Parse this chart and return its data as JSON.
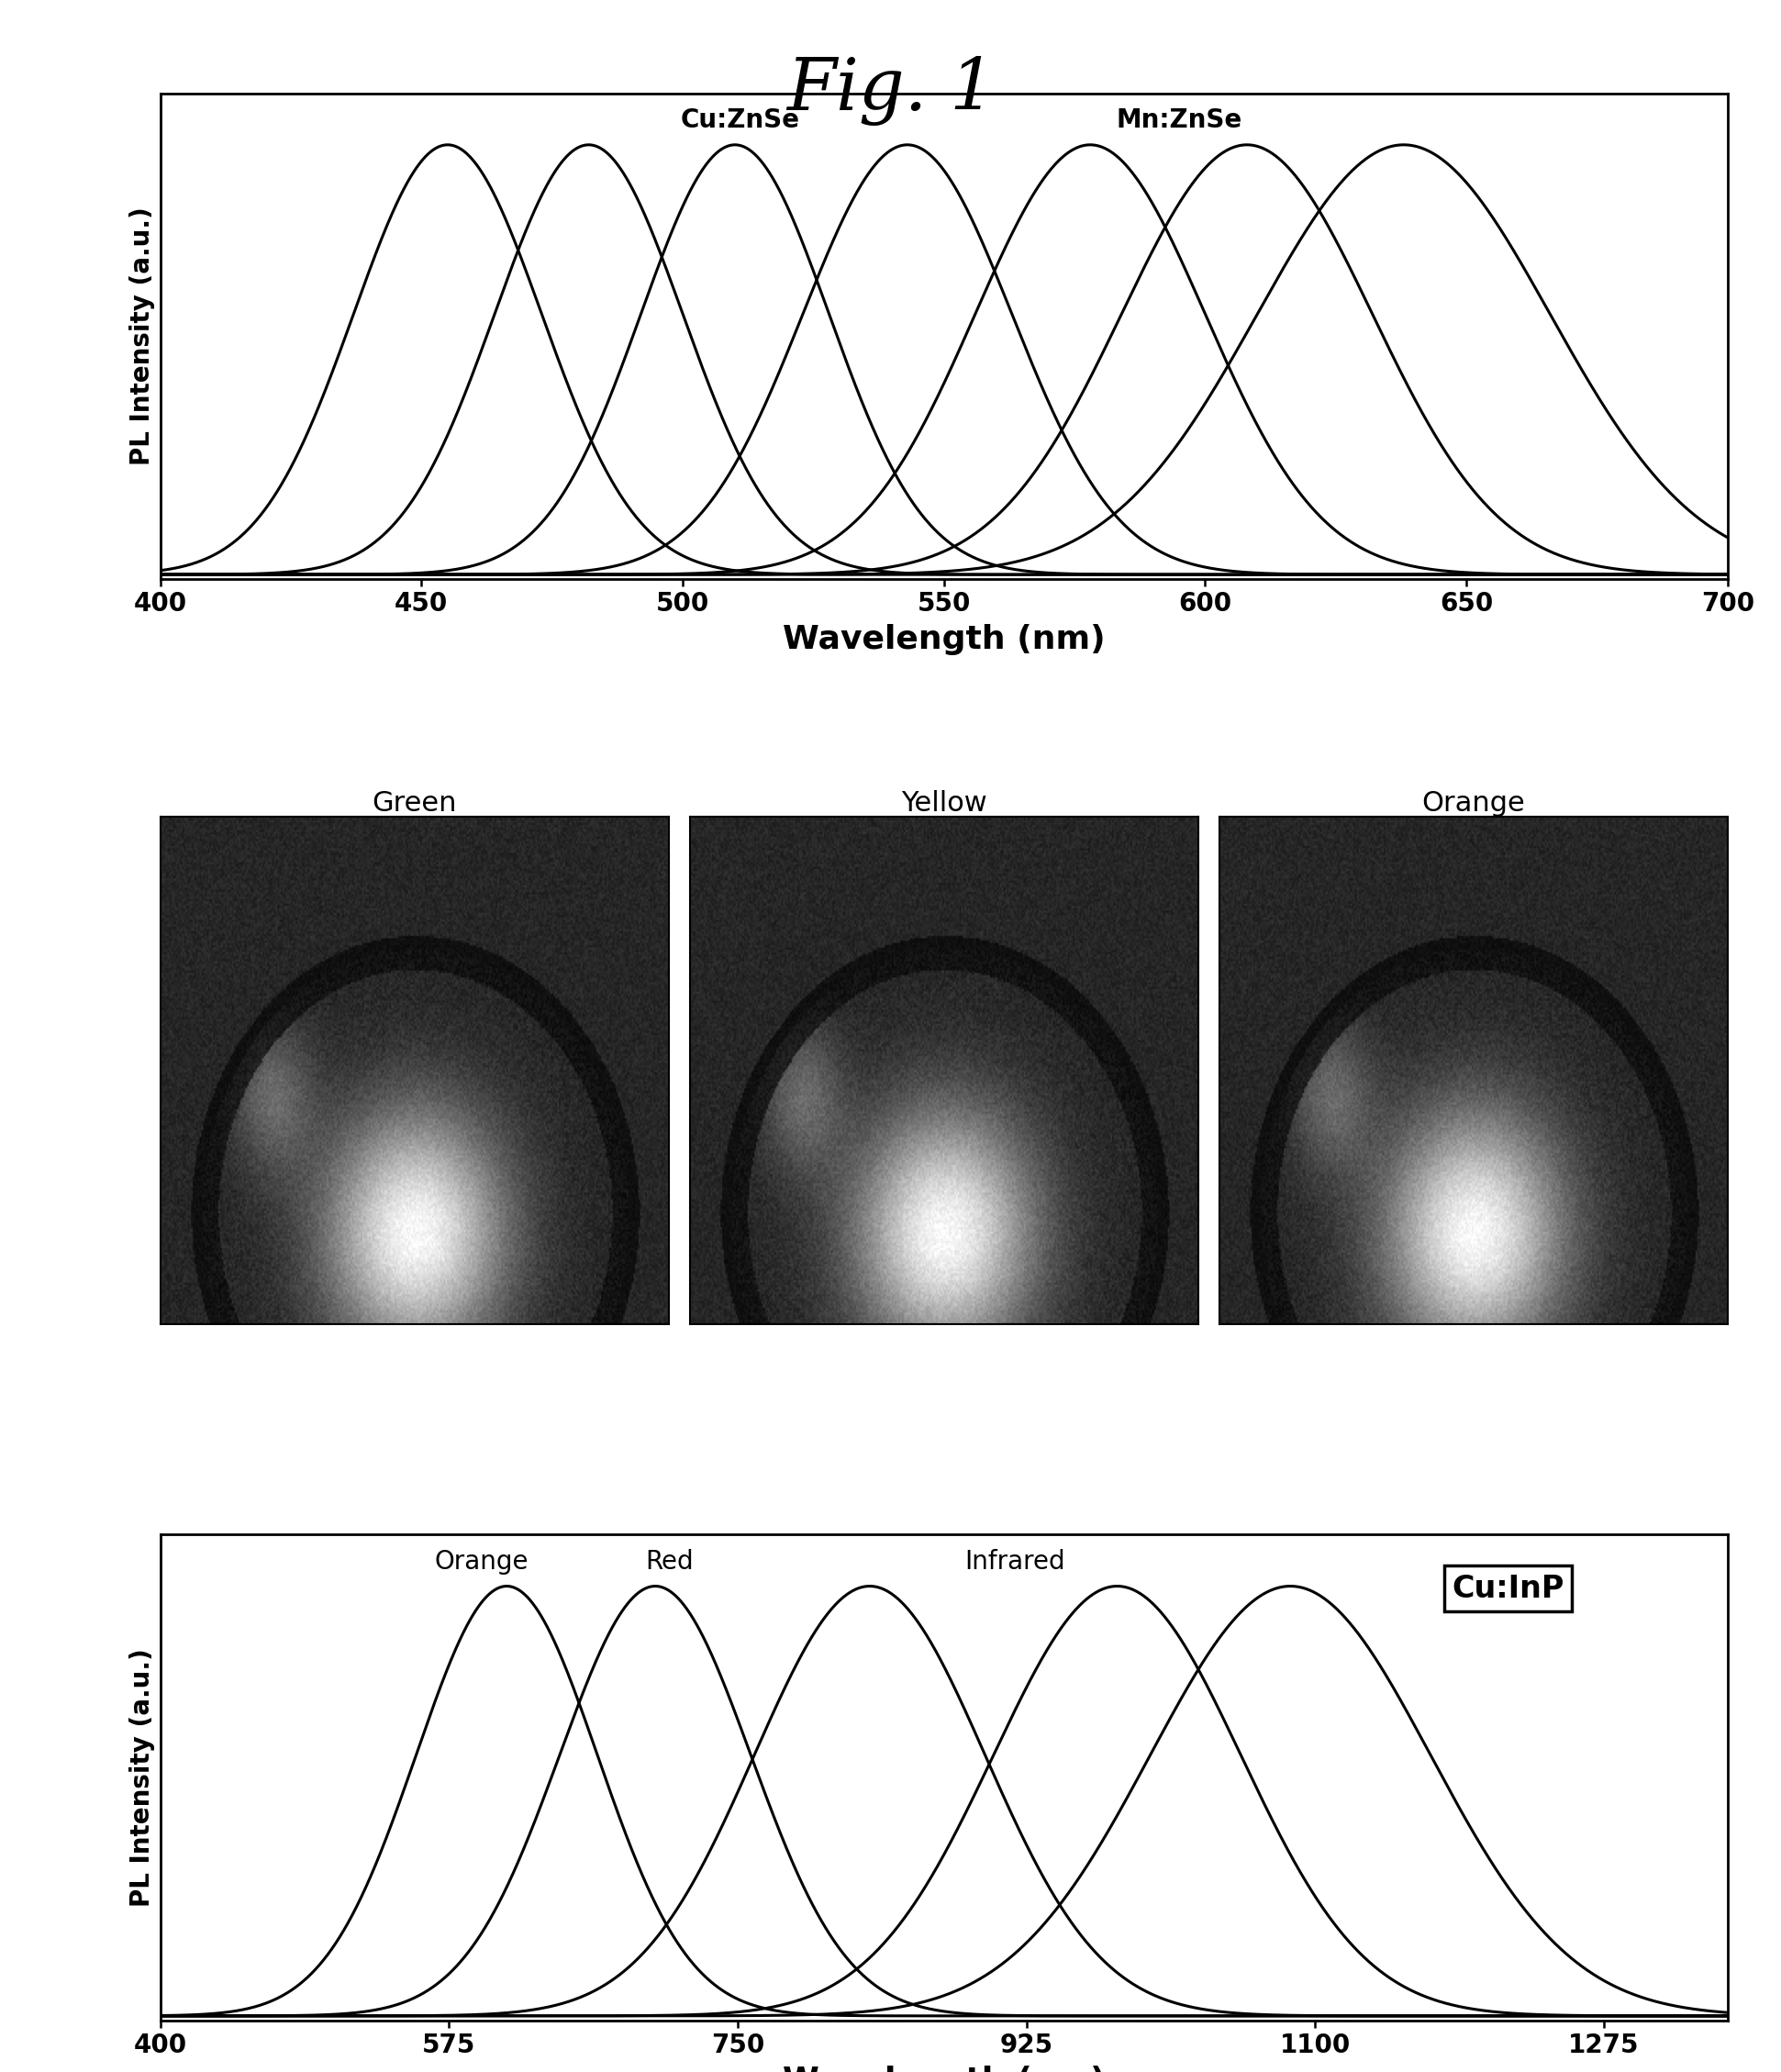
{
  "title": "Fig. 1",
  "title_fontsize": 56,
  "panel1": {
    "xlabel": "Wavelength (nm)",
    "ylabel": "PL Intensity (a.u.)",
    "xlabel_fontsize": 26,
    "ylabel_fontsize": 20,
    "xlim": [
      400,
      700
    ],
    "xticks": [
      400,
      450,
      500,
      550,
      600,
      650,
      700
    ],
    "label_cu": "Cu:ZnSe",
    "label_mn": "Mn:ZnSe",
    "label_fontsize": 20,
    "peaks": [
      455,
      482,
      510,
      543,
      578,
      608,
      638
    ],
    "widths": [
      18,
      18,
      18,
      20,
      22,
      24,
      28
    ],
    "linewidth": 2.2
  },
  "panel2": {
    "labels": [
      "Green",
      "Yellow",
      "Orange"
    ],
    "label_fontsize": 22
  },
  "panel3": {
    "xlabel": "Wavelength (nm)",
    "ylabel": "PL Intensity (a.u.)",
    "xlabel_fontsize": 26,
    "ylabel_fontsize": 20,
    "xlim": [
      400,
      1350
    ],
    "xticks": [
      400,
      575,
      750,
      925,
      1100,
      1275
    ],
    "label_cu": "Cu:InP",
    "label_fontsize": 20,
    "orange_label": "Orange",
    "red_label": "Red",
    "infrared_label": "Infrared",
    "peaks": [
      610,
      700,
      830,
      980,
      1085
    ],
    "widths": [
      55,
      58,
      70,
      75,
      85
    ],
    "linewidth": 2.2
  },
  "bg_color": "#ffffff",
  "line_color": "#000000",
  "tick_fontsize": 20,
  "axis_linewidth": 2.0
}
